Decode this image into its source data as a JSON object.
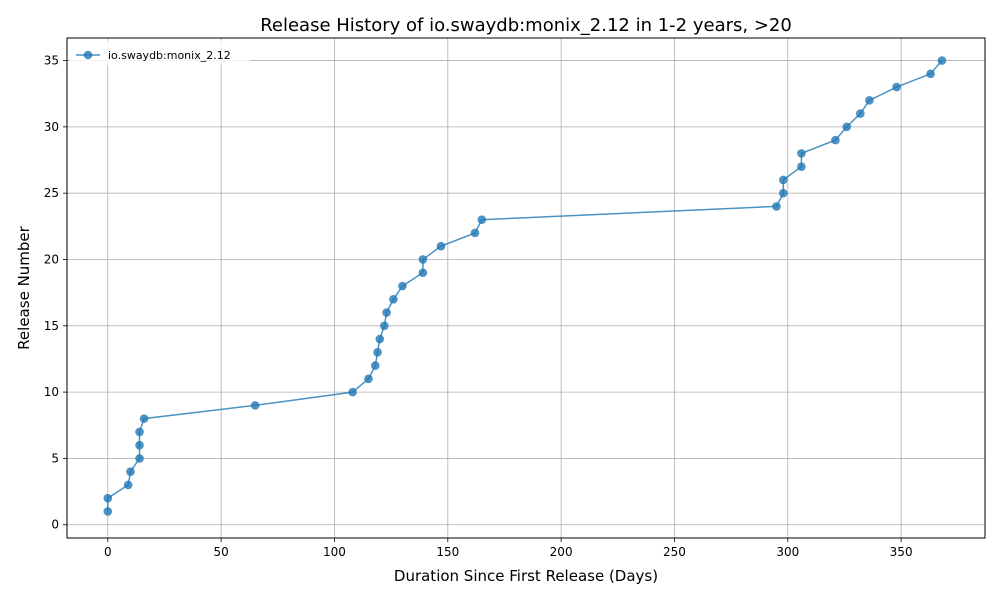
{
  "chart_data": {
    "type": "line",
    "title": "Release History of io.swaydb:monix_2.12 in 1-2 years, >20",
    "xlabel": "Duration Since First Release (Days)",
    "ylabel": "Release Number",
    "xlim": [
      -18,
      387
    ],
    "ylim": [
      -1,
      36.7
    ],
    "xticks": [
      0,
      50,
      100,
      150,
      200,
      250,
      300,
      350
    ],
    "yticks": [
      0,
      5,
      10,
      15,
      20,
      25,
      30,
      35
    ],
    "grid": true,
    "legend_position": "top-left",
    "series": [
      {
        "name": "io.swaydb:monix_2.12",
        "color": "#1f77b4",
        "marker": "circle",
        "x": [
          0,
          0,
          9,
          10,
          14,
          14,
          14,
          16,
          65,
          108,
          115,
          118,
          119,
          120,
          122,
          123,
          126,
          130,
          139,
          139,
          147,
          162,
          165,
          295,
          298,
          298,
          306,
          306,
          321,
          326,
          332,
          336,
          348,
          363,
          368
        ],
        "y": [
          1,
          2,
          3,
          4,
          5,
          6,
          7,
          8,
          9,
          10,
          11,
          12,
          13,
          14,
          15,
          16,
          17,
          18,
          19,
          20,
          21,
          22,
          23,
          24,
          25,
          26,
          27,
          28,
          29,
          30,
          31,
          32,
          33,
          34,
          35
        ]
      }
    ]
  }
}
